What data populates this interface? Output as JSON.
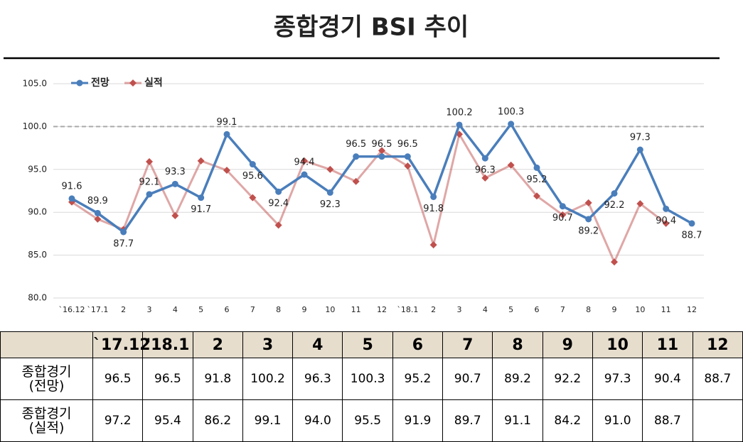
{
  "chart_data": {
    "type": "line",
    "title": "종합경기 BSI 추이",
    "categories": [
      "`16.12",
      "`17.1",
      "2",
      "3",
      "4",
      "5",
      "6",
      "7",
      "8",
      "9",
      "10",
      "11",
      "12",
      "`18.1",
      "2",
      "3",
      "4",
      "5",
      "6",
      "7",
      "8",
      "9",
      "10",
      "11",
      "12"
    ],
    "series": [
      {
        "name": "전망",
        "color": "#4a7ebb",
        "marker": "circle",
        "data_labels": true,
        "values": [
          91.6,
          89.9,
          87.7,
          92.1,
          93.3,
          91.7,
          99.1,
          95.6,
          92.4,
          94.4,
          92.3,
          96.5,
          96.5,
          96.5,
          91.8,
          100.2,
          96.3,
          100.3,
          95.2,
          90.7,
          89.2,
          92.2,
          97.3,
          90.4,
          88.7
        ]
      },
      {
        "name": "실적",
        "color": "#c0504d",
        "marker": "diamond",
        "data_labels": false,
        "values": [
          91.2,
          89.2,
          88.0,
          95.9,
          89.6,
          96.0,
          94.9,
          91.7,
          88.5,
          96.0,
          95.0,
          93.6,
          97.2,
          95.4,
          86.2,
          99.1,
          94.0,
          95.5,
          91.9,
          89.7,
          91.1,
          84.2,
          91.0,
          88.7,
          null
        ]
      }
    ],
    "ylim": [
      80,
      105
    ],
    "yticks": [
      {
        "value": 80,
        "label": "80.0"
      },
      {
        "value": 85,
        "label": "85.0"
      },
      {
        "value": 90,
        "label": "90.0"
      },
      {
        "value": 95,
        "label": "95.0"
      },
      {
        "value": 100,
        "label": "100.0"
      },
      {
        "value": 105,
        "label": "105.0"
      }
    ],
    "reference_line": 100,
    "grid": true,
    "legend": "top-left"
  },
  "table": {
    "columns": [
      "`17.12",
      "'18.1",
      "2",
      "3",
      "4",
      "5",
      "6",
      "7",
      "8",
      "9",
      "10",
      "11",
      "12"
    ],
    "rows": [
      {
        "label": [
          "종합경기",
          "(전망)"
        ],
        "cells": [
          "96.5",
          "96.5",
          "91.8",
          "100.2",
          "96.3",
          "100.3",
          "95.2",
          "90.7",
          "89.2",
          "92.2",
          "97.3",
          "90.4",
          "88.7"
        ]
      },
      {
        "label": [
          "종합경기",
          "(실적)"
        ],
        "cells": [
          "97.2",
          "95.4",
          "86.2",
          "99.1",
          "94.0",
          "95.5",
          "91.9",
          "89.7",
          "91.1",
          "84.2",
          "91.0",
          "88.7"
        ]
      }
    ]
  }
}
